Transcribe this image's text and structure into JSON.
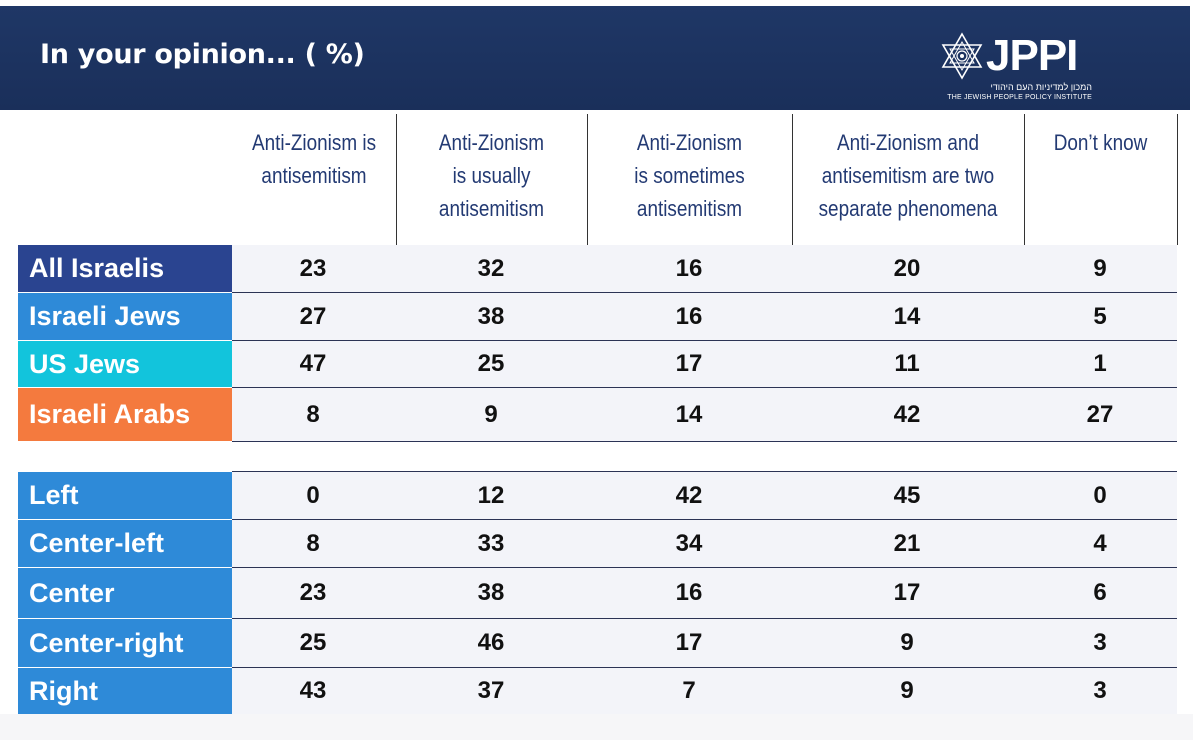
{
  "header": {
    "title": "In your opinion... ( %)",
    "logo": {
      "name": "JPPI",
      "hebrew": "המכון למדיניות העם היהודי",
      "english": "THE JEWISH PEOPLE POLICY INSTITUTE",
      "icon": "star-of-david-icon"
    }
  },
  "colors": {
    "header_bg": "#1f3766",
    "column_header_text": "#233a73",
    "all_israelis": "#2a4490",
    "israeli_jews": "#2e8ad8",
    "us_jews": "#12c4dc",
    "israeli_arabs": "#f47a3e",
    "political": "#2e8ad8"
  },
  "chart_data": {
    "type": "table",
    "title": "In your opinion... ( %)",
    "columns": [
      "Anti-Zionism is antisemitism",
      "Anti-Zionism is usually antisemitism",
      "Anti-Zionism is sometimes antisemitism",
      "Anti-Zionism and antisemitism are two separate phenomena",
      "Don’t know"
    ],
    "groups": [
      {
        "rows": [
          {
            "label": "All Israelis",
            "color": "#2a4490",
            "values": [
              23,
              32,
              16,
              20,
              9
            ]
          },
          {
            "label": "Israeli Jews",
            "color": "#2e8ad8",
            "values": [
              27,
              38,
              16,
              14,
              5
            ]
          },
          {
            "label": "US Jews",
            "color": "#12c4dc",
            "values": [
              47,
              25,
              17,
              11,
              1
            ]
          },
          {
            "label": "Israeli Arabs",
            "color": "#f47a3e",
            "values": [
              8,
              9,
              14,
              42,
              27
            ]
          }
        ]
      },
      {
        "rows": [
          {
            "label": "Left",
            "color": "#2e8ad8",
            "values": [
              0,
              12,
              42,
              45,
              0
            ]
          },
          {
            "label": "Center-left",
            "color": "#2e8ad8",
            "values": [
              8,
              33,
              34,
              21,
              4
            ]
          },
          {
            "label": "Center",
            "color": "#2e8ad8",
            "values": [
              23,
              38,
              16,
              17,
              6
            ]
          },
          {
            "label": "Center-right",
            "color": "#2e8ad8",
            "values": [
              25,
              46,
              17,
              9,
              3
            ]
          },
          {
            "label": "Right",
            "color": "#2e8ad8",
            "values": [
              43,
              37,
              7,
              9,
              3
            ]
          }
        ]
      }
    ]
  }
}
